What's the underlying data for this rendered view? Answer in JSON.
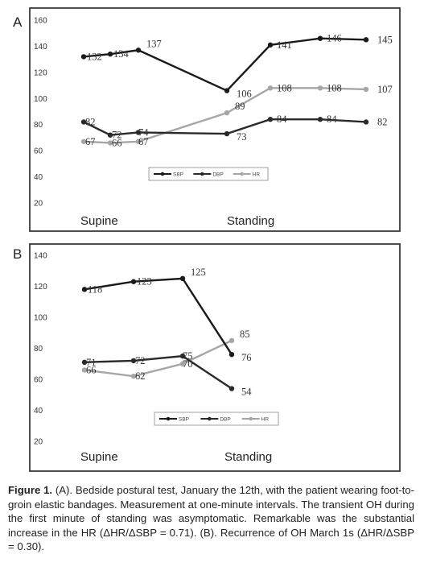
{
  "panels": [
    {
      "letter": "A"
    },
    {
      "letter": "B"
    }
  ],
  "chart_data": [
    {
      "type": "line",
      "ylim": [
        20,
        160
      ],
      "yticks": [
        20,
        40,
        60,
        80,
        100,
        120,
        140,
        160
      ],
      "x_labels": [
        "Supine",
        "Standing"
      ],
      "legend": {
        "placement": "bottom-center",
        "entries": [
          "SBP",
          "DBP",
          "HR"
        ]
      },
      "series": [
        {
          "name": "SBP",
          "color": "#1a1a1a",
          "values": [
            132,
            134,
            137,
            106,
            141,
            146,
            145
          ],
          "labels": [
            "132",
            "134",
            "137",
            "106",
            "141",
            "146",
            "145"
          ]
        },
        {
          "name": "DBP",
          "color": "#2a2a2a",
          "values": [
            82,
            72,
            74,
            73,
            84,
            84,
            82
          ],
          "labels": [
            "82",
            "72",
            "74",
            "73",
            "84",
            "84",
            "82"
          ]
        },
        {
          "name": "HR",
          "color": "#a6a6a6",
          "values": [
            67,
            66,
            67,
            89,
            108,
            108,
            107
          ],
          "labels": [
            "67",
            "66",
            "67",
            "89",
            "108",
            "108",
            "107"
          ]
        }
      ]
    },
    {
      "type": "line",
      "ylim": [
        20,
        140
      ],
      "yticks": [
        20,
        40,
        60,
        80,
        100,
        120,
        140
      ],
      "x_labels": [
        "Supine",
        "Standing"
      ],
      "legend": {
        "placement": "bottom-center",
        "entries": [
          "SBP",
          "DBP",
          "HR"
        ]
      },
      "series": [
        {
          "name": "SBP",
          "color": "#1a1a1a",
          "values": [
            118,
            123,
            125,
            76
          ],
          "labels": [
            "118",
            "123",
            "125",
            "76"
          ]
        },
        {
          "name": "DBP",
          "color": "#2a2a2a",
          "values": [
            71,
            72,
            75,
            54
          ],
          "labels": [
            "71",
            "72",
            "75",
            "54"
          ]
        },
        {
          "name": "HR",
          "color": "#a6a6a6",
          "values": [
            66,
            62,
            70,
            85
          ],
          "labels": [
            "66",
            "62",
            "70",
            "85"
          ]
        }
      ]
    }
  ],
  "caption": {
    "bold": "Figure 1.",
    "text": " (A). Bedside postural test, January the 12th, with the patient wearing foot-to-groin elastic bandages. Measurement at one-minute intervals. The transient OH during the first minute of standing was asymptomatic. Remarkable was the substantial increase in the HR (ΔHR/ΔSBP = 0.71). (B). Recurrence of OH March 1s (ΔHR/ΔSBP = 0.30)."
  }
}
